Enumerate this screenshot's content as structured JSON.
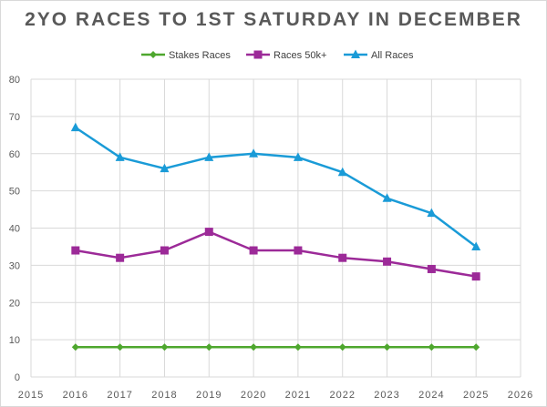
{
  "chart_data": {
    "type": "line",
    "title": "2YO RACES TO 1ST SATURDAY IN DECEMBER",
    "x": [
      2016,
      2017,
      2018,
      2019,
      2020,
      2021,
      2022,
      2023,
      2024,
      2025
    ],
    "series": [
      {
        "name": "Stakes Races",
        "color": "#4ea72e",
        "marker": "diamond",
        "values": [
          8,
          8,
          8,
          8,
          8,
          8,
          8,
          8,
          8,
          8
        ]
      },
      {
        "name": "Races 50k+",
        "color": "#9c2a98",
        "marker": "square",
        "values": [
          34,
          32,
          34,
          39,
          34,
          34,
          32,
          31,
          29,
          27
        ]
      },
      {
        "name": "All Races",
        "color": "#1a9bd7",
        "marker": "triangle",
        "values": [
          67,
          59,
          56,
          59,
          60,
          59,
          55,
          48,
          44,
          35
        ]
      }
    ],
    "xlim": [
      2015,
      2026
    ],
    "ylim": [
      0,
      80
    ],
    "xticks": [
      "2015",
      "2016",
      "2017",
      "2018",
      "2019",
      "2020",
      "2021",
      "2022",
      "2023",
      "2024",
      "2025",
      "2026"
    ],
    "yticks": [
      "0",
      "10",
      "20",
      "30",
      "40",
      "50",
      "60",
      "70",
      "80"
    ],
    "grid": true,
    "legend": "top"
  }
}
